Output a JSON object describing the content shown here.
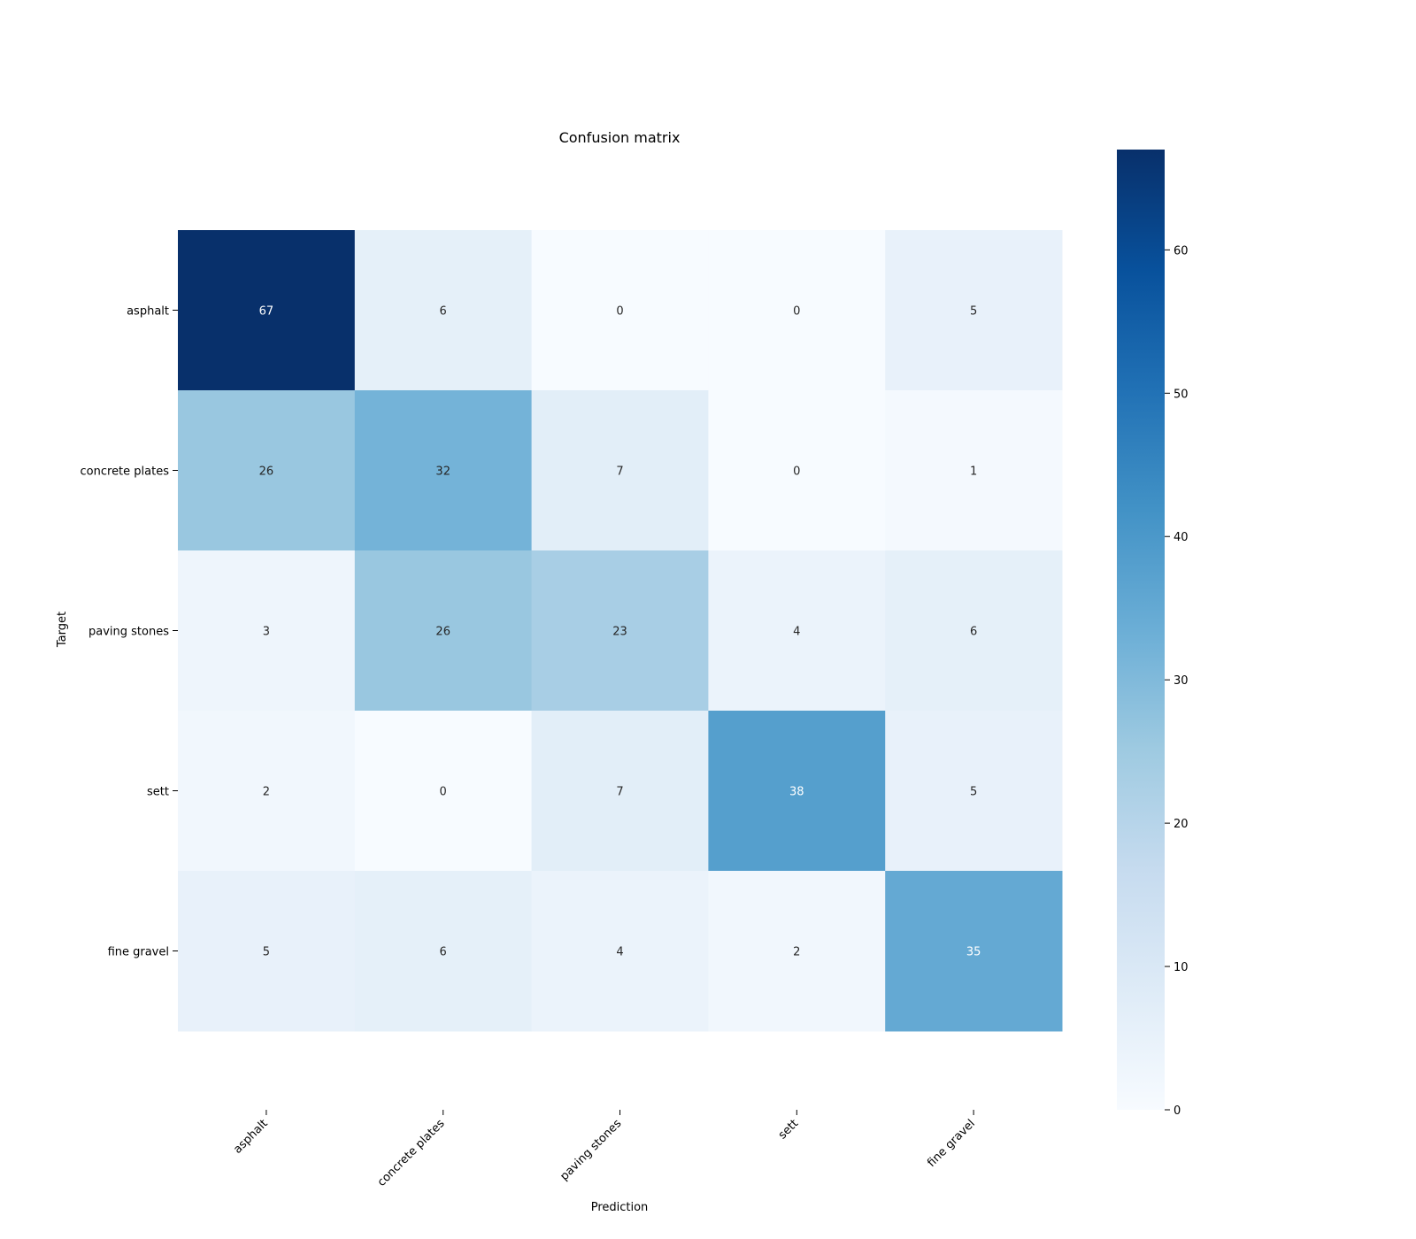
{
  "chart_data": {
    "type": "heatmap",
    "title": "Confusion matrix",
    "xlabel": "Prediction",
    "ylabel": "Target",
    "x_categories": [
      "asphalt",
      "concrete plates",
      "paving stones",
      "sett",
      "fine gravel"
    ],
    "y_categories": [
      "asphalt",
      "concrete plates",
      "paving stones",
      "sett",
      "fine gravel"
    ],
    "values": [
      [
        67,
        6,
        0,
        0,
        5
      ],
      [
        26,
        32,
        7,
        0,
        1
      ],
      [
        3,
        26,
        23,
        4,
        6
      ],
      [
        2,
        0,
        7,
        38,
        5
      ],
      [
        5,
        6,
        4,
        2,
        35
      ]
    ],
    "colormap": "Blues",
    "colorbar": {
      "range": [
        0,
        67
      ],
      "ticks": [
        0,
        10,
        20,
        30,
        40,
        50,
        60
      ]
    },
    "colors": {
      "low": "#f7fbff",
      "high": "#08306b",
      "text_dark": "#262626",
      "text_light": "#ffffff"
    }
  }
}
